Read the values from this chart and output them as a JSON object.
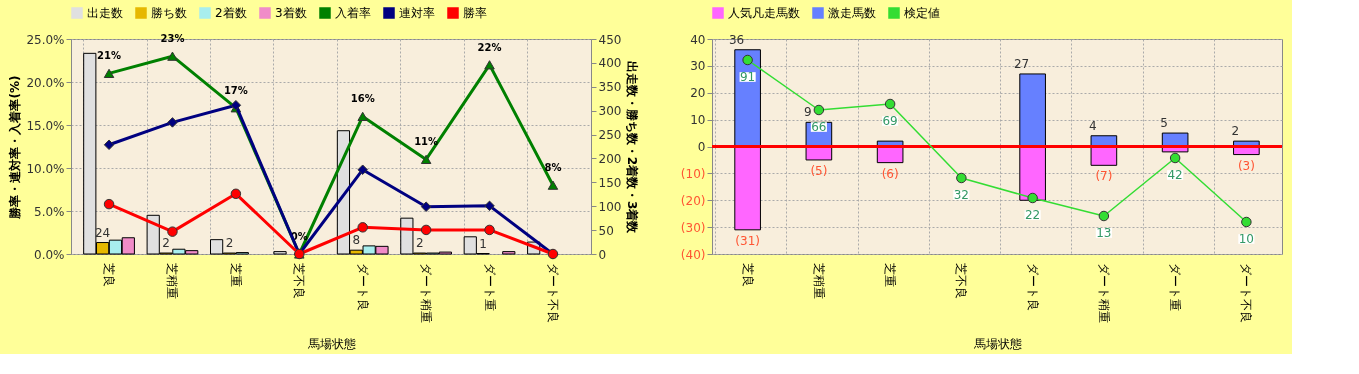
{
  "chart_data": [
    {
      "type": "bar",
      "categories": [
        "芝良",
        "芝稍重",
        "芝重",
        "芝不良",
        "ダート良",
        "ダート稍重",
        "ダート重",
        "ダート不良"
      ],
      "xlabel": "馬場状態",
      "ylabel": "勝率・連対率・入着率(%)",
      "y2label": "出走数・勝ち数・2着数・3着数",
      "ylim": [
        0,
        25
      ],
      "yticks": [
        {
          "value": 0,
          "label": "0.0%"
        },
        {
          "value": 5,
          "label": "5.0%"
        },
        {
          "value": 10,
          "label": "10.0%"
        },
        {
          "value": 15,
          "label": "15.0%"
        },
        {
          "value": 20,
          "label": "20.0%"
        },
        {
          "value": 25,
          "label": "25.0%"
        }
      ],
      "y2lim": [
        0,
        450
      ],
      "y2ticks": [
        0,
        50,
        100,
        150,
        200,
        250,
        300,
        350,
        400,
        450
      ],
      "grid": true,
      "legend": "top",
      "series": [
        {
          "name": "出走数",
          "color": "#e0e0e0",
          "axis": "y2",
          "values": [
            420,
            81,
            30,
            5,
            258,
            75,
            36,
            25
          ]
        },
        {
          "name": "勝ち数",
          "color": "#e6b800",
          "axis": "y2",
          "values": [
            24,
            2,
            2,
            0,
            8,
            2,
            1,
            0
          ],
          "value_labels": [
            "24",
            "2",
            "2",
            null,
            "8",
            "2",
            "1",
            null
          ]
        },
        {
          "name": "2着数",
          "color": "#a8eeee",
          "axis": "y2",
          "values": [
            29,
            10,
            3,
            0,
            17,
            2,
            null,
            null
          ]
        },
        {
          "name": "3着数",
          "color": "#f08cc8",
          "axis": "y2",
          "values": [
            34,
            7,
            0,
            0,
            16,
            4,
            5,
            null
          ]
        },
        {
          "name": "入着率",
          "type": "line",
          "color": "#008000",
          "marker": "triangle",
          "values": [
            21,
            23,
            17,
            0,
            16,
            11,
            22,
            8
          ],
          "value_labels": [
            "21%",
            "23%",
            "17%",
            "0%",
            "16%",
            "11%",
            "22%",
            "8%"
          ]
        },
        {
          "name": "連対率",
          "type": "line",
          "color": "#000080",
          "marker": "diamond",
          "values": [
            12.7,
            15.3,
            17.3,
            0,
            9.8,
            5.5,
            5.6,
            0
          ]
        },
        {
          "name": "勝率",
          "type": "line",
          "color": "#ff0000",
          "marker": "circle",
          "values": [
            5.8,
            2.6,
            7.0,
            0,
            3.1,
            2.8,
            2.8,
            0
          ]
        }
      ]
    },
    {
      "type": "bar",
      "stacked": true,
      "categories": [
        "芝良",
        "芝稍重",
        "芝重",
        "芝不良",
        "ダート良",
        "ダート稍重",
        "ダート重",
        "ダート不良"
      ],
      "xlabel": "馬場状態",
      "ylim": [
        -40,
        40
      ],
      "yticks": [
        {
          "value": -40,
          "label": "(40)"
        },
        {
          "value": -30,
          "label": "(30)"
        },
        {
          "value": -20,
          "label": "(20)"
        },
        {
          "value": -10,
          "label": "(10)"
        },
        0,
        10,
        20,
        30,
        40
      ],
      "y2lim": [
        -6,
        101.5
      ],
      "grid": true,
      "legend": "top",
      "ref_lines": [
        {
          "axis": "y",
          "value": 0,
          "color": "#ff0000"
        }
      ],
      "series": [
        {
          "name": "人気凡走馬数",
          "color": "#ff66ff",
          "values": [
            -31,
            -5,
            -6,
            null,
            -20,
            -7,
            -2,
            -3
          ],
          "value_labels": [
            "(31)",
            "(5)",
            "(6)",
            null,
            null,
            "(7)",
            null,
            "(3)"
          ]
        },
        {
          "name": "激走馬数",
          "color": "#6680ff",
          "values": [
            36,
            9,
            2,
            null,
            27,
            4,
            5,
            2
          ],
          "value_labels": [
            "36",
            "9",
            null,
            null,
            "27",
            "4",
            "5",
            "2"
          ]
        },
        {
          "name": "検定値",
          "type": "line",
          "axis": "y2",
          "color": "#33dd33",
          "marker": "circle",
          "values": [
            91,
            66,
            69,
            32,
            22,
            13,
            42,
            10
          ],
          "value_labels": [
            "91",
            "66",
            "69",
            "32",
            "22",
            "13",
            "42",
            "10"
          ]
        }
      ]
    }
  ]
}
